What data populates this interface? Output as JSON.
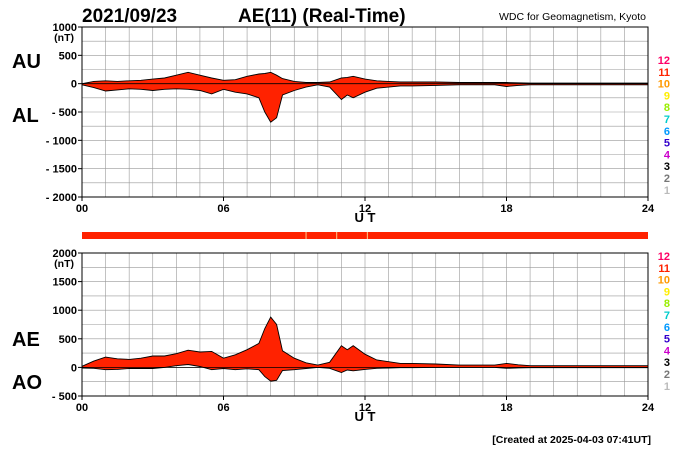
{
  "header": {
    "date": "2021/09/23",
    "title": "AE(11) (Real-Time)",
    "source": "WDC for Geomagnetism, Kyoto"
  },
  "footer": {
    "created": "[Created at 2025-04-03 07:41UT]"
  },
  "chart_data": [
    {
      "type": "area",
      "panel": "top",
      "series_labels": [
        "AU",
        "AL"
      ],
      "ylabel": "(nT)",
      "xlabel": "U T",
      "ylim": [
        -2000,
        1000
      ],
      "yticks": [
        1000,
        500,
        0,
        -500,
        -1000,
        -1500,
        -2000
      ],
      "ytick_labels": [
        "1000",
        "500",
        "0",
        "- 500",
        "- 1000",
        "- 1500",
        "- 2000"
      ],
      "xlim": [
        0,
        24
      ],
      "xticks": [
        0,
        6,
        12,
        18,
        24
      ],
      "xtick_labels": [
        "00",
        "06",
        "12",
        "18",
        "24"
      ],
      "grid": true,
      "x": [
        0,
        0.5,
        1,
        1.5,
        2,
        2.5,
        3,
        3.5,
        4,
        4.5,
        5,
        5.5,
        6,
        6.5,
        7,
        7.5,
        7.75,
        8,
        8.25,
        8.5,
        9,
        9.5,
        10,
        10.5,
        11,
        11.25,
        11.5,
        12,
        12.5,
        13,
        13.5,
        14,
        15,
        16,
        17,
        17.5,
        18,
        18.5,
        19,
        20,
        21,
        22,
        23,
        24
      ],
      "series": [
        {
          "name": "AU",
          "values": [
            0,
            40,
            50,
            40,
            50,
            60,
            80,
            100,
            150,
            200,
            150,
            100,
            60,
            70,
            130,
            170,
            180,
            200,
            150,
            90,
            40,
            20,
            20,
            30,
            100,
            110,
            130,
            80,
            50,
            40,
            30,
            30,
            30,
            20,
            20,
            20,
            20,
            15,
            10,
            10,
            10,
            10,
            10,
            10
          ]
        },
        {
          "name": "AL",
          "values": [
            -20,
            -70,
            -130,
            -110,
            -90,
            -100,
            -120,
            -100,
            -90,
            -100,
            -120,
            -180,
            -100,
            -150,
            -180,
            -250,
            -500,
            -680,
            -600,
            -200,
            -120,
            -60,
            -20,
            -60,
            -280,
            -200,
            -250,
            -150,
            -80,
            -60,
            -40,
            -40,
            -30,
            -20,
            -20,
            -20,
            -50,
            -30,
            -20,
            -20,
            -20,
            -20,
            -20,
            -20
          ]
        }
      ]
    },
    {
      "type": "area",
      "panel": "bottom",
      "series_labels": [
        "AE",
        "AO"
      ],
      "ylabel": "(nT)",
      "xlabel": "U T",
      "ylim": [
        -500,
        2000
      ],
      "yticks": [
        2000,
        1500,
        1000,
        500,
        0,
        -500
      ],
      "ytick_labels": [
        "2000",
        "1500",
        "1000",
        "500",
        "0",
        "- 500"
      ],
      "xlim": [
        0,
        24
      ],
      "xticks": [
        0,
        6,
        12,
        18,
        24
      ],
      "xtick_labels": [
        "00",
        "06",
        "12",
        "18",
        "24"
      ],
      "grid": true,
      "x": [
        0,
        0.5,
        1,
        1.5,
        2,
        2.5,
        3,
        3.5,
        4,
        4.5,
        5,
        5.5,
        6,
        6.5,
        7,
        7.5,
        7.75,
        8,
        8.25,
        8.5,
        9,
        9.5,
        10,
        10.5,
        11,
        11.25,
        11.5,
        12,
        12.5,
        13,
        13.5,
        14,
        15,
        16,
        17,
        17.5,
        18,
        18.5,
        19,
        20,
        21,
        22,
        23,
        24
      ],
      "series": [
        {
          "name": "AE",
          "values": [
            20,
            110,
            180,
            150,
            140,
            160,
            200,
            200,
            240,
            300,
            270,
            280,
            160,
            220,
            310,
            420,
            680,
            880,
            750,
            290,
            160,
            80,
            40,
            90,
            380,
            310,
            380,
            230,
            130,
            100,
            70,
            70,
            60,
            40,
            40,
            40,
            70,
            45,
            30,
            30,
            30,
            30,
            30,
            30
          ]
        },
        {
          "name": "AO",
          "values": [
            -10,
            -15,
            -40,
            -35,
            -20,
            -20,
            -20,
            0,
            30,
            50,
            15,
            -40,
            -20,
            -40,
            -25,
            -40,
            -160,
            -240,
            -225,
            -55,
            -40,
            -20,
            0,
            -15,
            -90,
            -45,
            -60,
            -35,
            -15,
            -10,
            -5,
            -5,
            0,
            0,
            0,
            0,
            -15,
            -8,
            -5,
            -5,
            -5,
            -5,
            -5,
            -5
          ]
        }
      ]
    }
  ],
  "status_bar": {
    "color": "#ff2200",
    "tick_positions_ut": [
      9.5,
      10.8,
      12.1
    ]
  },
  "level_legend": {
    "labels": [
      "12",
      "11",
      "10",
      "9",
      "8",
      "7",
      "6",
      "5",
      "4",
      "3",
      "2",
      "1"
    ],
    "colors": [
      "#ff0066",
      "#ff2200",
      "#ff9900",
      "#ffee00",
      "#99ee00",
      "#00cccc",
      "#0099ff",
      "#3300cc",
      "#cc00cc",
      "#000000",
      "#777777",
      "#bbbbbb"
    ]
  },
  "colors": {
    "fill": "#ff2200",
    "grid": "#999999"
  }
}
